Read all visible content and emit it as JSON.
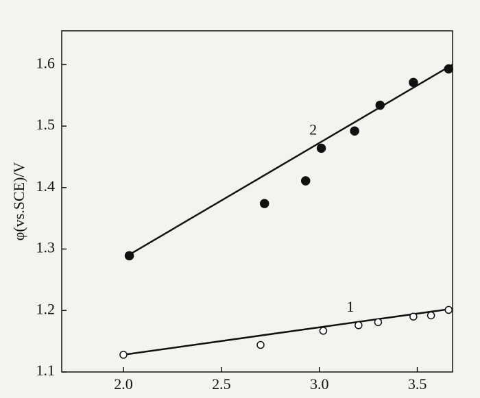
{
  "chart_data": {
    "type": "scatter",
    "y_label": "φ(vs.SCE)/V",
    "xlim": [
      1.685,
      3.68
    ],
    "ylim": [
      1.1,
      1.655
    ],
    "xticks": [
      {
        "value": 2.0,
        "label": "2.0"
      },
      2.5,
      {
        "value": 3.0,
        "label": "3.0"
      },
      3.5
    ],
    "yticks": [
      1.1,
      1.2,
      1.3,
      1.4,
      1.5,
      1.6
    ],
    "color": "#111111",
    "series": [
      {
        "label": "1",
        "marker": "open",
        "x": [
          2.0,
          2.7,
          3.02,
          3.2,
          3.3,
          3.48,
          3.57,
          3.66
        ],
        "y": [
          1.128,
          1.144,
          1.167,
          1.176,
          1.181,
          1.19,
          1.192,
          1.201
        ],
        "fit_x": [
          2.0,
          3.68
        ],
        "fit_y": [
          1.128,
          1.203
        ]
      },
      {
        "label": "2",
        "marker": "filled",
        "x": [
          2.03,
          2.72,
          2.93,
          3.01,
          3.18,
          3.31,
          3.48,
          3.66
        ],
        "y": [
          1.289,
          1.374,
          1.411,
          1.464,
          1.492,
          1.534,
          1.571,
          1.593
        ],
        "fit_x": [
          2.02,
          3.68
        ],
        "fit_y": [
          1.289,
          1.6
        ]
      }
    ]
  }
}
